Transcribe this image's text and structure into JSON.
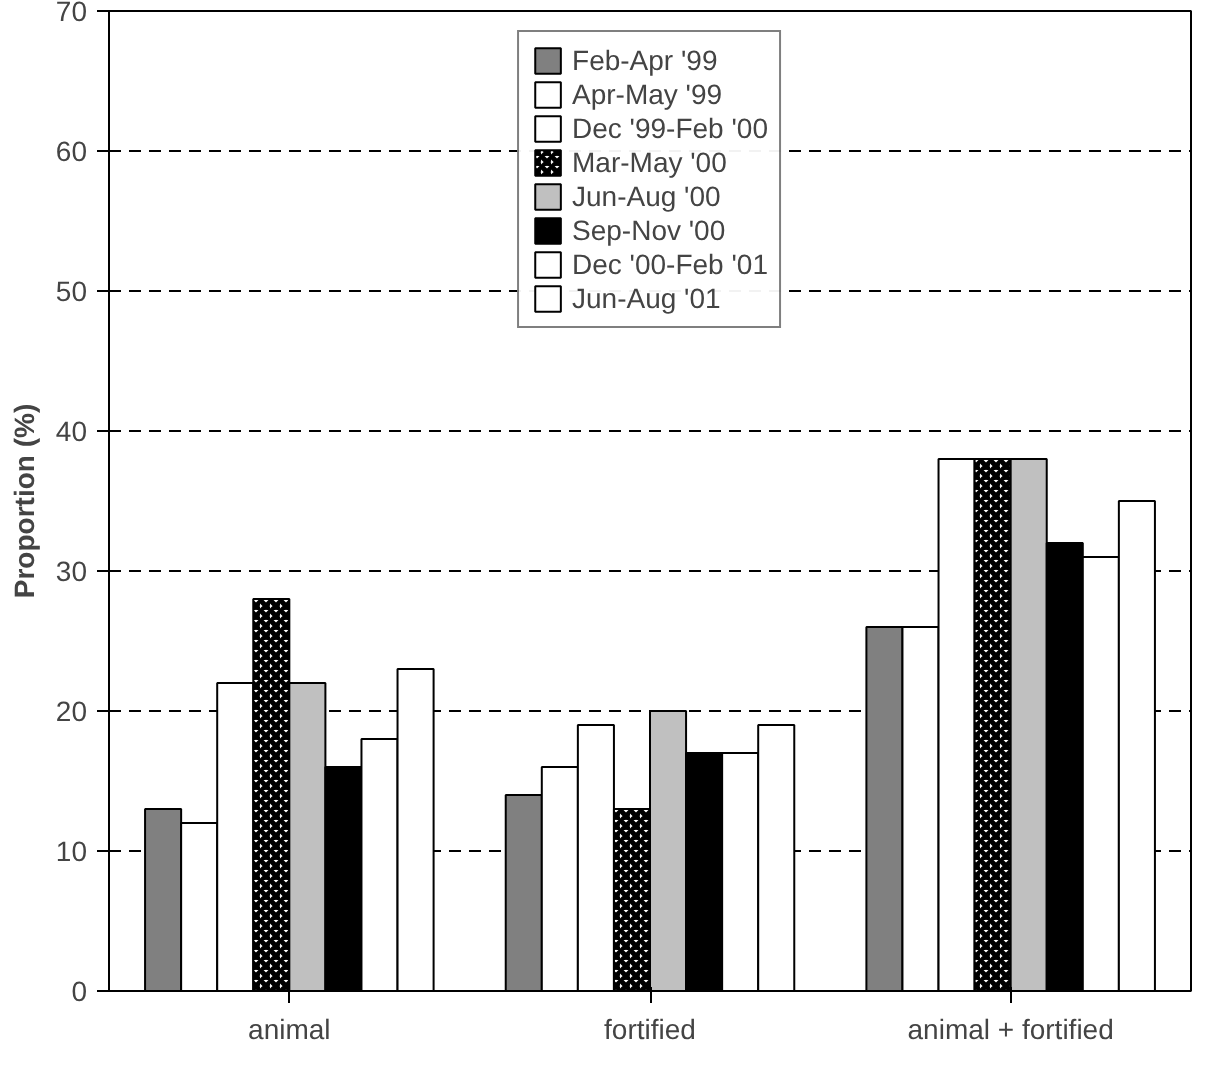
{
  "chart_data": {
    "type": "bar",
    "ylabel": "Proportion (%)",
    "categories": [
      "animal",
      "fortified",
      "animal + fortified"
    ],
    "ylim": [
      0,
      70
    ],
    "yticks": [
      0,
      10,
      20,
      30,
      40,
      50,
      60,
      70
    ],
    "grid": "y",
    "legend": "top",
    "series": [
      {
        "name": "Feb-Apr '99",
        "color": "#808080",
        "values": [
          13,
          14,
          26
        ]
      },
      {
        "name": "Apr-May '99",
        "color": "#ffffff",
        "values": [
          12,
          16,
          26
        ]
      },
      {
        "name": "Dec '99-Feb '00",
        "color": "#ffffff",
        "values": [
          22,
          19,
          38
        ]
      },
      {
        "name": "Mar-May '00",
        "color": "#ffffff",
        "values": [
          28,
          13,
          38
        ]
      },
      {
        "name": "Jun-Aug '00",
        "color": "#c0c0c0",
        "values": [
          22,
          20,
          38
        ]
      },
      {
        "name": "Sep-Nov '00",
        "color": "#000000",
        "values": [
          16,
          17,
          32
        ]
      },
      {
        "name": "Dec '00-Feb '01",
        "color": "#ffffff",
        "values": [
          18,
          17,
          31
        ]
      },
      {
        "name": "Jun-Aug '01",
        "color": "#ffffff",
        "values": [
          23,
          19,
          35
        ]
      }
    ]
  }
}
